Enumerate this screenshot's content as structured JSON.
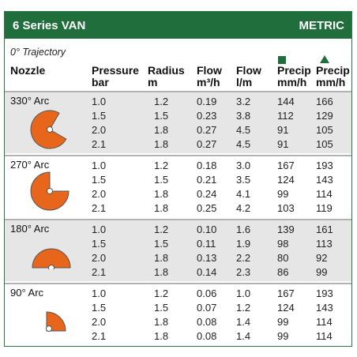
{
  "header": {
    "title": "6 Series VAN",
    "metric": "METRIC"
  },
  "trajectory": "0° Trajectory",
  "columns": {
    "nozzle": "Nozzle",
    "pressure": [
      "Pressure",
      "bar"
    ],
    "radius": [
      "Radius",
      "m"
    ],
    "flow_m3h": [
      "Flow",
      "m³/h"
    ],
    "flow_lm": [
      "Flow",
      "l/m"
    ],
    "precip_square": [
      "Precip",
      "mm/h"
    ],
    "precip_triangle": [
      "Precip",
      "mm/h"
    ]
  },
  "legend_colors": {
    "square": "#1f6e3b",
    "triangle": "#1f6e3b",
    "nozzle_fill": "#e8661c"
  },
  "groups": [
    {
      "arc": "330° Arc",
      "icon": "nozzle-330-icon",
      "rows": [
        [
          "1.0",
          "1.2",
          "0.19",
          "3.2",
          "144",
          "166"
        ],
        [
          "1.5",
          "1.5",
          "0.23",
          "3.8",
          "112",
          "129"
        ],
        [
          "2.0",
          "1.8",
          "0.27",
          "4.5",
          "91",
          "105"
        ],
        [
          "2.1",
          "1.8",
          "0.27",
          "4.5",
          "91",
          "105"
        ]
      ]
    },
    {
      "arc": "270° Arc",
      "icon": "nozzle-270-icon",
      "rows": [
        [
          "1.0",
          "1.2",
          "0.18",
          "3.0",
          "167",
          "193"
        ],
        [
          "1.5",
          "1.5",
          "0.21",
          "3.5",
          "124",
          "143"
        ],
        [
          "2.0",
          "1.8",
          "0.24",
          "4.1",
          "99",
          "114"
        ],
        [
          "2.1",
          "1.8",
          "0.25",
          "4.2",
          "103",
          "119"
        ]
      ]
    },
    {
      "arc": "180° Arc",
      "icon": "nozzle-180-icon",
      "rows": [
        [
          "1.0",
          "1.2",
          "0.10",
          "1.6",
          "139",
          "161"
        ],
        [
          "1.5",
          "1.5",
          "0.11",
          "1.9",
          "98",
          "113"
        ],
        [
          "2.0",
          "1.8",
          "0.13",
          "2.2",
          "80",
          "92"
        ],
        [
          "2.1",
          "1.8",
          "0.14",
          "2.3",
          "86",
          "99"
        ]
      ]
    },
    {
      "arc": "90° Arc",
      "icon": "nozzle-90-icon",
      "rows": [
        [
          "1.0",
          "1.2",
          "0.06",
          "1.0",
          "167",
          "193"
        ],
        [
          "1.5",
          "1.5",
          "0.07",
          "1.2",
          "124",
          "143"
        ],
        [
          "2.0",
          "1.8",
          "0.08",
          "1.4",
          "99",
          "114"
        ],
        [
          "2.1",
          "1.8",
          "0.08",
          "1.4",
          "99",
          "114"
        ]
      ]
    }
  ]
}
